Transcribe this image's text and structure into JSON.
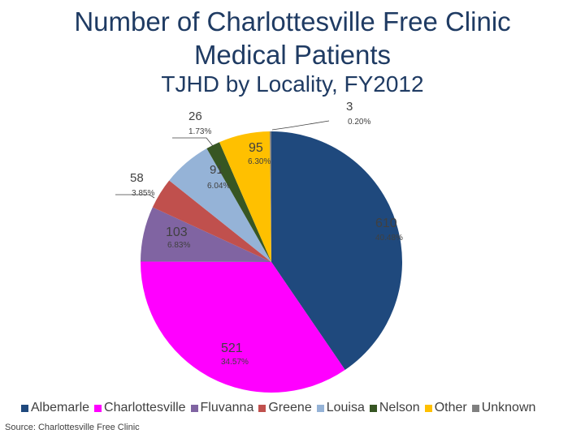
{
  "chart_data": {
    "type": "pie",
    "title": [
      "Number of Charlottesville Free Clinic",
      "Medical Patients"
    ],
    "subtitle": "TJHD by Locality, FY2012",
    "start_angle_deg": 0,
    "slices": [
      {
        "name": "Albemarle",
        "value": 610,
        "value_label": "610",
        "percent_label": "40.48%",
        "color": "#1f497d"
      },
      {
        "name": "Charlottesville",
        "value": 521,
        "value_label": "521",
        "percent_label": "34.57%",
        "color": "#ff00ff"
      },
      {
        "name": "Fluvanna",
        "value": 103,
        "value_label": "103",
        "percent_label": "6.83%",
        "color": "#8064a2"
      },
      {
        "name": "Greene",
        "value": 58,
        "value_label": "58",
        "percent_label": "3.85%",
        "color": "#c0504d"
      },
      {
        "name": "Louisa",
        "value": 91,
        "value_label": "91",
        "percent_label": "6.04%",
        "color": "#95b3d7"
      },
      {
        "name": "Nelson",
        "value": 26,
        "value_label": "26",
        "percent_label": "1.73%",
        "color": "#375623"
      },
      {
        "name": "Other",
        "value": 95,
        "value_label": "95",
        "percent_label": "6.30%",
        "color": "#ffc000"
      },
      {
        "name": "Unknown",
        "value": 3,
        "value_label": "3",
        "percent_label": "0.20%",
        "color": "#808080"
      }
    ],
    "legend_position": "bottom",
    "source": "Source:  Charlottesville Free Clinic"
  }
}
